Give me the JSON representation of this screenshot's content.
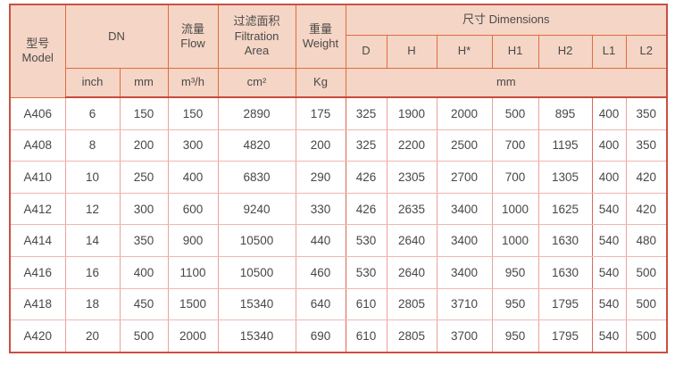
{
  "table": {
    "header": {
      "model": "型号\nModel",
      "dn": "DN",
      "flow": "流量\nFlow",
      "filtration_area": "过滤面积\nFiltration\nArea",
      "weight": "重量\nWeight",
      "dimensions": "尺寸 Dimensions",
      "dimension_cols": [
        "D",
        "H",
        "H*",
        "H1",
        "H2",
        "L1",
        "L2"
      ],
      "units": {
        "inch": "inch",
        "mm": "mm",
        "flow": "m³/h",
        "area": "cm²",
        "weight": "Kg",
        "dimensions_mm": "mm"
      }
    },
    "rows": [
      {
        "model": "A406",
        "inch": "6",
        "mm": "150",
        "flow": "150",
        "area": "2890",
        "weight": "175",
        "d": "325",
        "h": "1900",
        "h_star": "2000",
        "h1": "500",
        "h2": "895",
        "l1": "400",
        "l2": "350"
      },
      {
        "model": "A408",
        "inch": "8",
        "mm": "200",
        "flow": "300",
        "area": "4820",
        "weight": "200",
        "d": "325",
        "h": "2200",
        "h_star": "2500",
        "h1": "700",
        "h2": "1195",
        "l1": "400",
        "l2": "350"
      },
      {
        "model": "A410",
        "inch": "10",
        "mm": "250",
        "flow": "400",
        "area": "6830",
        "weight": "290",
        "d": "426",
        "h": "2305",
        "h_star": "2700",
        "h1": "700",
        "h2": "1305",
        "l1": "400",
        "l2": "420"
      },
      {
        "model": "A412",
        "inch": "12",
        "mm": "300",
        "flow": "600",
        "area": "9240",
        "weight": "330",
        "d": "426",
        "h": "2635",
        "h_star": "3400",
        "h1": "1000",
        "h2": "1625",
        "l1": "540",
        "l2": "420"
      },
      {
        "model": "A414",
        "inch": "14",
        "mm": "350",
        "flow": "900",
        "area": "10500",
        "weight": "440",
        "d": "530",
        "h": "2640",
        "h_star": "3400",
        "h1": "1000",
        "h2": "1630",
        "l1": "540",
        "l2": "480"
      },
      {
        "model": "A416",
        "inch": "16",
        "mm": "400",
        "flow": "1100",
        "area": "10500",
        "weight": "460",
        "d": "530",
        "h": "2640",
        "h_star": "3400",
        "h1": "950",
        "h2": "1630",
        "l1": "540",
        "l2": "500"
      },
      {
        "model": "A418",
        "inch": "18",
        "mm": "450",
        "flow": "1500",
        "area": "15340",
        "weight": "640",
        "d": "610",
        "h": "2805",
        "h_star": "3710",
        "h1": "950",
        "h2": "1795",
        "l1": "540",
        "l2": "500"
      },
      {
        "model": "A420",
        "inch": "20",
        "mm": "500",
        "flow": "2000",
        "area": "15340",
        "weight": "690",
        "d": "610",
        "h": "2805",
        "h_star": "3700",
        "h1": "950",
        "h2": "1795",
        "l1": "540",
        "l2": "500"
      }
    ]
  },
  "colors": {
    "header_bg": "#f5d5c5",
    "header_border": "#e26b40",
    "header_bottom_separator": "#c64b3a",
    "outer_border": "#c95042",
    "body_grid_vertical": "#eba29b",
    "body_grid_horizontal": "#f2b6b0",
    "body_grid_strong": "#df655c",
    "text": "#4a4a4a"
  }
}
